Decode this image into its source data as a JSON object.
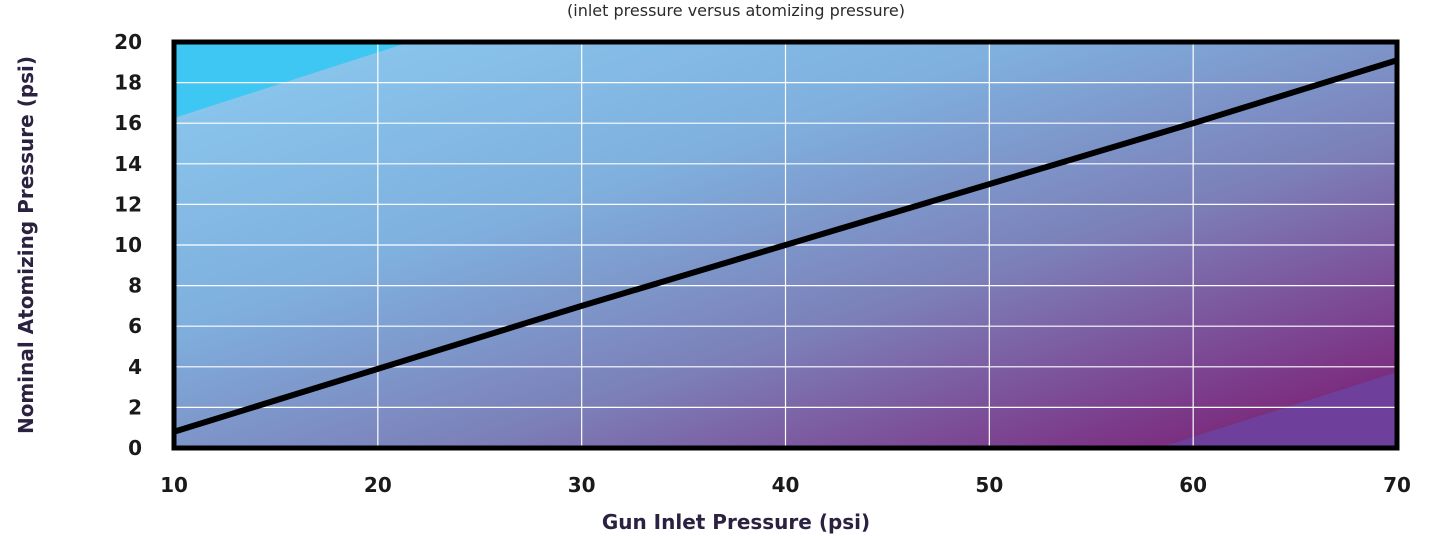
{
  "chart_data": {
    "type": "line",
    "title": "",
    "subtitle": "(inlet pressure versus atomizing pressure)",
    "xlabel": "Gun Inlet Pressure (psi)",
    "ylabel": "Nominal Atomizing Pressure (psi)",
    "xlim": [
      10,
      70
    ],
    "ylim": [
      0,
      20
    ],
    "x_ticks": [
      10,
      20,
      30,
      40,
      50,
      60,
      70
    ],
    "y_ticks": [
      0,
      2,
      4,
      6,
      8,
      10,
      12,
      14,
      16,
      18,
      20
    ],
    "grid": true,
    "legend": "none",
    "series": [
      {
        "x": [
          10,
          20,
          30,
          40,
          50,
          60,
          70
        ],
        "y": [
          0.8,
          3.9,
          7.0,
          10.0,
          13.0,
          16.0,
          19.1
        ]
      }
    ],
    "colors": {
      "line": "#000000",
      "grid": "#ffffff",
      "frame": "#000000",
      "bg_top_left": "#3ec6f2",
      "bg_light": "#7fbde8",
      "bg_mid": "#7c88c0",
      "bg_bottom_right": "#7a1a6e",
      "bg_corner_purple": "#6e3e9a"
    }
  }
}
